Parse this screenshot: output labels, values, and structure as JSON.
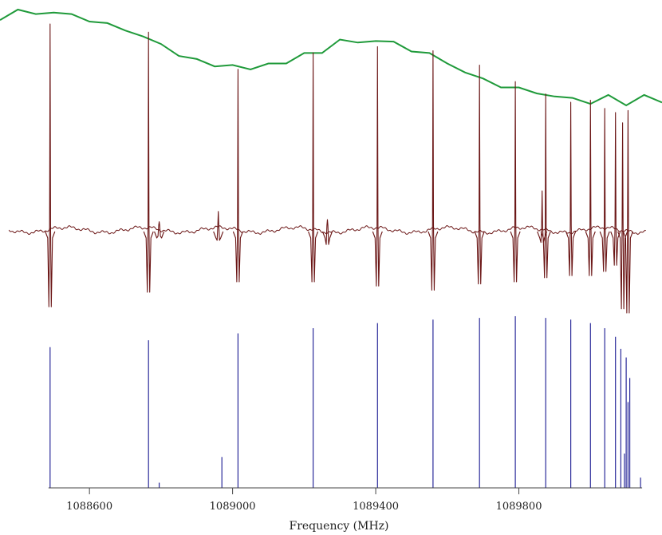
{
  "chart_data": {
    "type": "line",
    "xlabel": "Frequency (MHz)",
    "xlim": [
      1088350,
      1090200
    ],
    "x_ticks": [
      1088600,
      1089000,
      1089400,
      1089800
    ],
    "x_tick_labels": [
      "1088600",
      "1089000",
      "1089400",
      "1089800"
    ],
    "grid": false,
    "legend": "none",
    "colors": {
      "envelope": "#1f9a3a",
      "spectrum": "#6b1616",
      "stick": "#2a2a9a",
      "axis": "#444444"
    },
    "envelope": {
      "x": [
        1088350,
        1088400,
        1088450,
        1088500,
        1088550,
        1088600,
        1088650,
        1088700,
        1088750,
        1088800,
        1088850,
        1088900,
        1088950,
        1089000,
        1089050,
        1089100,
        1089150,
        1089200,
        1089250,
        1089300,
        1089350,
        1089400,
        1089450,
        1089500,
        1089550,
        1089600,
        1089650,
        1089700,
        1089750,
        1089800,
        1089850,
        1089900,
        1089950,
        1090000,
        1090050,
        1090100,
        1090150,
        1090200
      ],
      "y": [
        0.965,
        1.0,
        0.985,
        0.99,
        0.985,
        0.96,
        0.955,
        0.93,
        0.91,
        0.885,
        0.845,
        0.835,
        0.81,
        0.815,
        0.8,
        0.82,
        0.82,
        0.855,
        0.855,
        0.9,
        0.89,
        0.895,
        0.893,
        0.86,
        0.855,
        0.82,
        0.79,
        0.77,
        0.74,
        0.74,
        0.72,
        0.71,
        0.705,
        0.685,
        0.715,
        0.68,
        0.715,
        0.69
      ]
    },
    "spectrum_lines": [
      {
        "x": 1088490,
        "up": 1.0,
        "down": 0.37
      },
      {
        "x": 1088765,
        "up": 0.96,
        "down": 0.3
      },
      {
        "x": 1089015,
        "up": 0.78,
        "down": 0.25
      },
      {
        "x": 1089225,
        "up": 0.86,
        "down": 0.25
      },
      {
        "x": 1089405,
        "up": 0.89,
        "down": 0.27
      },
      {
        "x": 1089560,
        "up": 0.87,
        "down": 0.29
      },
      {
        "x": 1089690,
        "up": 0.8,
        "down": 0.26
      },
      {
        "x": 1089790,
        "up": 0.72,
        "down": 0.25
      },
      {
        "x": 1089875,
        "up": 0.66,
        "down": 0.23
      },
      {
        "x": 1089945,
        "up": 0.62,
        "down": 0.22
      },
      {
        "x": 1090000,
        "up": 0.63,
        "down": 0.22
      },
      {
        "x": 1090040,
        "up": 0.59,
        "down": 0.2
      },
      {
        "x": 1090070,
        "up": 0.57,
        "down": 0.17
      },
      {
        "x": 1090090,
        "up": 0.52,
        "down": 0.38
      },
      {
        "x": 1090105,
        "up": 0.58,
        "down": 0.4
      }
    ],
    "spectrum_small_features": [
      {
        "x": 1088795,
        "up": 0.04,
        "down": 0.03
      },
      {
        "x": 1088960,
        "up": 0.09,
        "down": 0.05
      },
      {
        "x": 1089265,
        "up": 0.05,
        "down": 0.07
      },
      {
        "x": 1089865,
        "up": 0.19,
        "down": 0.06
      }
    ],
    "stick_spectrum": {
      "x": [
        1088490,
        1088765,
        1088795,
        1088970,
        1089015,
        1089225,
        1089405,
        1089560,
        1089690,
        1089790,
        1089875,
        1089945,
        1090000,
        1090040,
        1090070,
        1090085,
        1090095,
        1090100,
        1090105,
        1090110,
        1090140
      ],
      "y": [
        0.82,
        0.86,
        0.03,
        0.18,
        0.9,
        0.93,
        0.96,
        0.98,
        0.99,
        1.0,
        0.99,
        0.98,
        0.96,
        0.93,
        0.88,
        0.81,
        0.2,
        0.76,
        0.5,
        0.64,
        0.06
      ]
    }
  }
}
